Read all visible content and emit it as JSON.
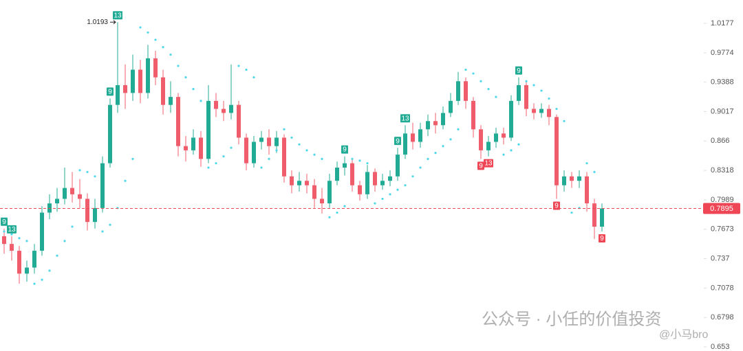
{
  "chart_data": {
    "type": "candlestick",
    "log_scale": true,
    "ylim": [
      0.6493,
      1.0508
    ],
    "yticks": [
      1.0177,
      0.9774,
      0.9388,
      0.9017,
      0.866,
      0.8318,
      0.7989,
      0.7673,
      0.737,
      0.7078,
      0.6798,
      0.653
    ],
    "up_color": "#22ab94",
    "down_color": "#ef5c6b",
    "sar_color": "#4fd8e8",
    "candles": [
      [
        0.76,
        0.768,
        0.742,
        0.752
      ],
      [
        0.752,
        0.76,
        0.735,
        0.745
      ],
      [
        0.745,
        0.75,
        0.712,
        0.722
      ],
      [
        0.722,
        0.735,
        0.714,
        0.728
      ],
      [
        0.728,
        0.752,
        0.722,
        0.745
      ],
      [
        0.745,
        0.792,
        0.74,
        0.785
      ],
      [
        0.785,
        0.805,
        0.778,
        0.795
      ],
      [
        0.795,
        0.812,
        0.786,
        0.8
      ],
      [
        0.8,
        0.835,
        0.794,
        0.812
      ],
      [
        0.812,
        0.83,
        0.796,
        0.805
      ],
      [
        0.805,
        0.822,
        0.79,
        0.8
      ],
      [
        0.8,
        0.806,
        0.766,
        0.775
      ],
      [
        0.775,
        0.8,
        0.768,
        0.79
      ],
      [
        0.79,
        0.848,
        0.785,
        0.84
      ],
      [
        0.84,
        0.918,
        0.835,
        0.91
      ],
      [
        0.91,
        1.0193,
        0.9,
        0.935
      ],
      [
        0.935,
        0.962,
        0.905,
        0.925
      ],
      [
        0.925,
        0.975,
        0.915,
        0.955
      ],
      [
        0.955,
        0.968,
        0.912,
        0.925
      ],
      [
        0.925,
        0.988,
        0.918,
        0.97
      ],
      [
        0.97,
        0.98,
        0.935,
        0.945
      ],
      [
        0.945,
        0.955,
        0.898,
        0.91
      ],
      [
        0.91,
        0.94,
        0.9,
        0.92
      ],
      [
        0.92,
        0.925,
        0.848,
        0.86
      ],
      [
        0.86,
        0.872,
        0.842,
        0.855
      ],
      [
        0.855,
        0.88,
        0.85,
        0.87
      ],
      [
        0.87,
        0.878,
        0.836,
        0.845
      ],
      [
        0.845,
        0.935,
        0.84,
        0.915
      ],
      [
        0.915,
        0.925,
        0.895,
        0.905
      ],
      [
        0.905,
        0.915,
        0.89,
        0.9
      ],
      [
        0.9,
        0.962,
        0.892,
        0.91
      ],
      [
        0.91,
        0.915,
        0.862,
        0.87
      ],
      [
        0.87,
        0.875,
        0.832,
        0.84
      ],
      [
        0.84,
        0.872,
        0.835,
        0.865
      ],
      [
        0.865,
        0.878,
        0.856,
        0.87
      ],
      [
        0.87,
        0.88,
        0.85,
        0.86
      ],
      [
        0.86,
        0.878,
        0.852,
        0.87
      ],
      [
        0.87,
        0.874,
        0.818,
        0.825
      ],
      [
        0.825,
        0.832,
        0.806,
        0.815
      ],
      [
        0.815,
        0.83,
        0.808,
        0.82
      ],
      [
        0.82,
        0.828,
        0.806,
        0.815
      ],
      [
        0.815,
        0.822,
        0.79,
        0.8
      ],
      [
        0.8,
        0.812,
        0.784,
        0.795
      ],
      [
        0.795,
        0.828,
        0.79,
        0.82
      ],
      [
        0.82,
        0.842,
        0.815,
        0.835
      ],
      [
        0.835,
        0.848,
        0.826,
        0.84
      ],
      [
        0.84,
        0.845,
        0.808,
        0.815
      ],
      [
        0.815,
        0.82,
        0.798,
        0.805
      ],
      [
        0.805,
        0.838,
        0.8,
        0.83
      ],
      [
        0.83,
        0.834,
        0.808,
        0.815
      ],
      [
        0.815,
        0.828,
        0.81,
        0.82
      ],
      [
        0.82,
        0.832,
        0.814,
        0.825
      ],
      [
        0.825,
        0.858,
        0.82,
        0.85
      ],
      [
        0.85,
        0.885,
        0.845,
        0.875
      ],
      [
        0.875,
        0.888,
        0.856,
        0.865
      ],
      [
        0.865,
        0.888,
        0.858,
        0.88
      ],
      [
        0.88,
        0.898,
        0.872,
        0.89
      ],
      [
        0.89,
        0.9,
        0.875,
        0.885
      ],
      [
        0.885,
        0.908,
        0.88,
        0.9
      ],
      [
        0.9,
        0.925,
        0.895,
        0.915
      ],
      [
        0.915,
        0.952,
        0.91,
        0.94
      ],
      [
        0.94,
        0.945,
        0.905,
        0.915
      ],
      [
        0.915,
        0.92,
        0.87,
        0.88
      ],
      [
        0.88,
        0.885,
        0.845,
        0.855
      ],
      [
        0.855,
        0.872,
        0.848,
        0.865
      ],
      [
        0.865,
        0.882,
        0.858,
        0.875
      ],
      [
        0.875,
        0.882,
        0.862,
        0.87
      ],
      [
        0.87,
        0.922,
        0.866,
        0.915
      ],
      [
        0.915,
        0.945,
        0.91,
        0.935
      ],
      [
        0.935,
        0.94,
        0.896,
        0.905
      ],
      [
        0.905,
        0.912,
        0.892,
        0.9
      ],
      [
        0.9,
        0.912,
        0.894,
        0.905
      ],
      [
        0.905,
        0.91,
        0.885,
        0.895
      ],
      [
        0.895,
        0.898,
        0.8,
        0.815
      ],
      [
        0.815,
        0.832,
        0.808,
        0.825
      ],
      [
        0.825,
        0.83,
        0.812,
        0.82
      ],
      [
        0.82,
        0.832,
        0.812,
        0.825
      ],
      [
        0.825,
        0.83,
        0.786,
        0.795
      ],
      [
        0.795,
        0.8,
        0.757,
        0.77
      ],
      [
        0.77,
        0.795,
        0.765,
        0.7895
      ]
    ],
    "sar": [
      0.765,
      0.762,
      0.758,
      0.755,
      0.712,
      0.716,
      0.725,
      0.74,
      0.755,
      0.77,
      0.832,
      0.83,
      0.825,
      0.765,
      0.772,
      0.79,
      0.82,
      0.845,
      1.012,
      1.005,
      0.995,
      0.985,
      0.975,
      0.96,
      0.945,
      0.93,
      0.915,
      0.835,
      0.84,
      0.848,
      0.858,
      0.96,
      0.955,
      0.945,
      0.835,
      0.845,
      0.855,
      0.88,
      0.87,
      0.862,
      0.855,
      0.85,
      0.845,
      0.78,
      0.785,
      0.792,
      0.845,
      0.843,
      0.84,
      0.795,
      0.8,
      0.805,
      0.81,
      0.815,
      0.825,
      0.835,
      0.845,
      0.852,
      0.86,
      0.868,
      0.88,
      0.955,
      0.95,
      0.94,
      0.93,
      0.92,
      0.85,
      0.855,
      0.862,
      0.94,
      0.935,
      0.928,
      0.918,
      0.905,
      0.89,
      0.785,
      0.79,
      0.84,
      0.83,
      0.76
    ],
    "td_labels": [
      {
        "candle": 0,
        "text": "9",
        "color": "#22ab94",
        "position": "above"
      },
      {
        "candle": 1,
        "text": "13",
        "color": "#22ab94",
        "position": "above"
      },
      {
        "candle": 14,
        "text": "9",
        "color": "#22ab94",
        "position": "above"
      },
      {
        "candle": 15,
        "text": "13",
        "color": "#22ab94",
        "position": "above"
      },
      {
        "candle": 45,
        "text": "9",
        "color": "#22ab94",
        "position": "above"
      },
      {
        "candle": 52,
        "text": "9",
        "color": "#22ab94",
        "position": "above"
      },
      {
        "candle": 53,
        "text": "13",
        "color": "#22ab94",
        "position": "above"
      },
      {
        "candle": 68,
        "text": "9",
        "color": "#22ab94",
        "position": "above"
      },
      {
        "candle": 63,
        "text": "9",
        "color": "#ef4655",
        "position": "below"
      },
      {
        "candle": 64,
        "text": "13",
        "color": "#ef4655",
        "position": "below"
      },
      {
        "candle": 73,
        "text": "9",
        "color": "#ef4655",
        "position": "below"
      },
      {
        "candle": 79,
        "text": "9",
        "color": "#ef4655",
        "position": "below"
      }
    ],
    "max_label": 1.0193,
    "current_price": 0.7895,
    "current_price_color": "#ef4655",
    "watermark": "公众号 · 小任的价值投资",
    "watermark_handle": "@小马bro"
  }
}
